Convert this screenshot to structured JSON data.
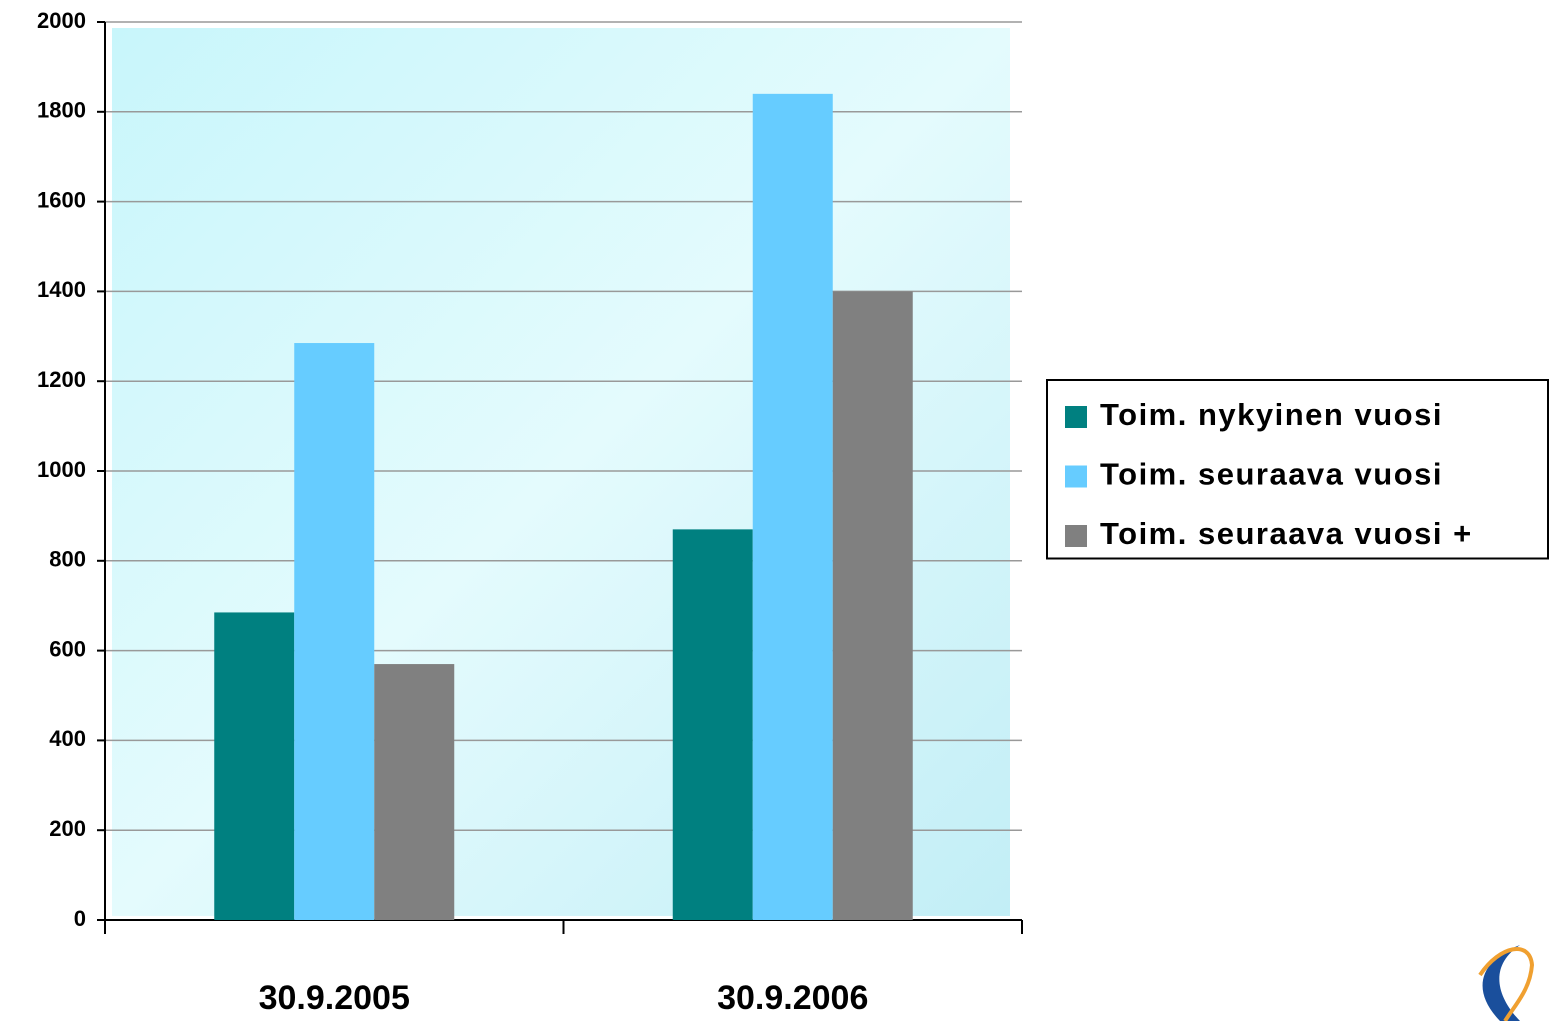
{
  "chart_data": {
    "type": "bar",
    "categories": [
      "30.9.2005",
      "30.9.2006"
    ],
    "series": [
      {
        "name": "Toim. nykyinen vuosi",
        "color": "#008080",
        "values": [
          685,
          870
        ]
      },
      {
        "name": "Toim. seuraava vuosi",
        "color": "#66ccff",
        "values": [
          1285,
          1840
        ]
      },
      {
        "name": "Toim. seuraava vuosi +",
        "color": "#808080",
        "values": [
          570,
          1400
        ]
      }
    ],
    "ylim": [
      0,
      2000
    ],
    "yticks": [
      0,
      200,
      400,
      600,
      800,
      1000,
      1200,
      1400,
      1600,
      1800,
      2000
    ],
    "grid": true,
    "legend": "right"
  }
}
